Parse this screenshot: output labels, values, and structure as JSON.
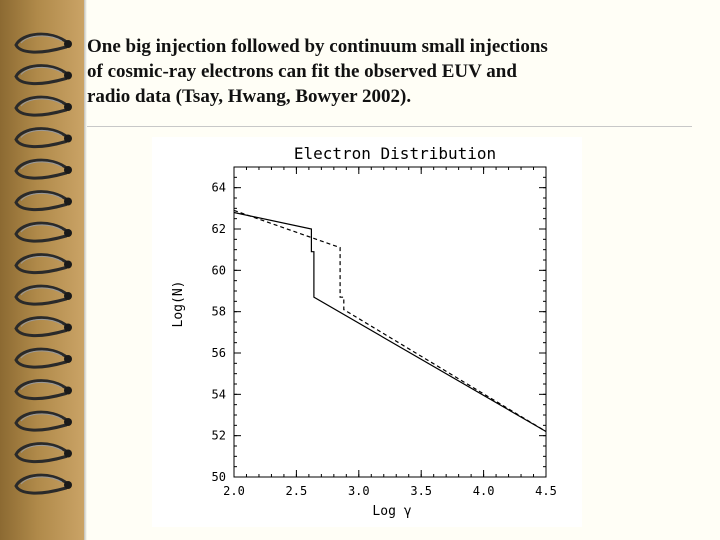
{
  "headline": {
    "lines": [
      "One big injection followed by continuum small injections",
      "of cosmic-ray electrons can fit the observed EUV and",
      "radio data (Tsay, Hwang, Bowyer 2002)."
    ]
  },
  "colors": {
    "spine": "#b08a4a",
    "ring": "#2a2a2a",
    "page": "#fffef6",
    "text": "#111111"
  },
  "chart_data": {
    "type": "line",
    "title": "Electron Distribution",
    "xlabel": "Log γ",
    "ylabel": "Log(N)",
    "xlim": [
      2.0,
      4.5
    ],
    "ylim": [
      50,
      65
    ],
    "x_ticks": [
      "2.0",
      "2.5",
      "3.0",
      "3.5",
      "4.0",
      "4.5"
    ],
    "y_ticks": [
      "50",
      "52",
      "54",
      "56",
      "58",
      "60",
      "62",
      "64"
    ],
    "legend": "none",
    "grid": false,
    "series": [
      {
        "style": "solid",
        "x": [
          2.0,
          2.62,
          2.62,
          2.64,
          2.64,
          4.5
        ],
        "y": [
          62.8,
          62.0,
          60.9,
          60.9,
          58.7,
          52.2
        ]
      },
      {
        "style": "dashed",
        "x": [
          2.0,
          2.85,
          2.85,
          2.88,
          2.88,
          4.5
        ],
        "y": [
          62.9,
          61.1,
          58.7,
          58.7,
          58.1,
          52.2
        ]
      }
    ]
  }
}
